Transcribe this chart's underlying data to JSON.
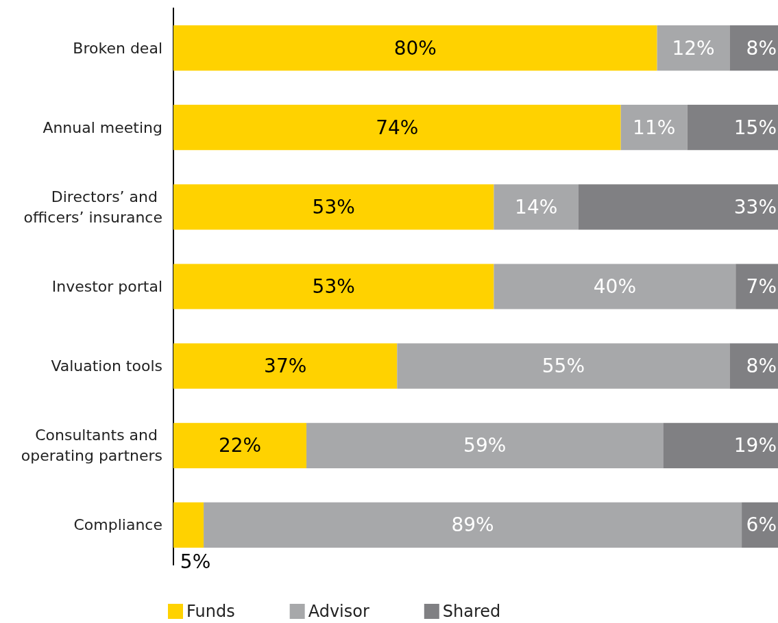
{
  "chart_data": {
    "type": "bar",
    "orientation": "horizontal",
    "stacked": true,
    "legend": "bottom left",
    "categories": [
      "Broken deal",
      "Annual meeting",
      "Directors’ and officers’ insurance",
      "Investor portal",
      "Valuation tools",
      "Consultants and operating partners",
      "Compliance"
    ],
    "series": [
      {
        "name": "Funds",
        "color": "#ffd200",
        "values": [
          80,
          74,
          53,
          53,
          37,
          22,
          5
        ],
        "value_labels": [
          "80%",
          "74%",
          "53%",
          "53%",
          "37%",
          "22%",
          "5%"
        ]
      },
      {
        "name": "Advisor",
        "color": "#a7a8aa",
        "values": [
          12,
          11,
          14,
          40,
          55,
          59,
          89
        ],
        "value_labels": [
          "12%",
          "11%",
          "14%",
          "40%",
          "55%",
          "59%",
          "89%"
        ]
      },
      {
        "name": "Shared",
        "color": "#808083",
        "values": [
          8,
          15,
          33,
          7,
          8,
          19,
          6
        ],
        "value_labels": [
          "8%",
          "15%",
          "33%",
          "7%",
          "8%",
          "19%",
          "6%"
        ]
      }
    ]
  }
}
